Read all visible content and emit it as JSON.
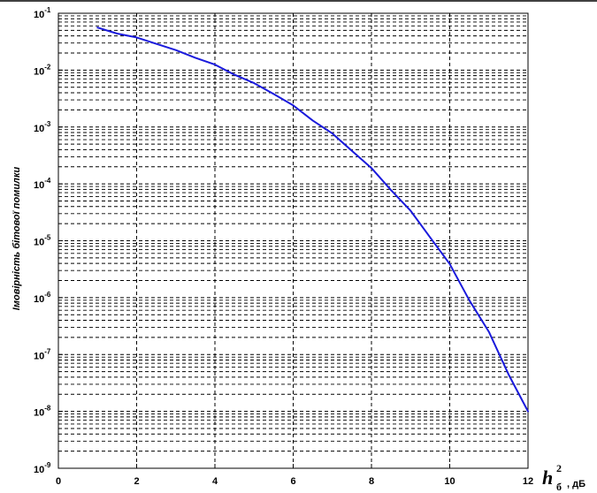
{
  "chart_data": {
    "type": "line",
    "title": "",
    "ylabel": "Імовірність бітової помилки",
    "xlabel": {
      "base": "h",
      "subscript": "б",
      "superscript": "2",
      "unit": ", дБ"
    },
    "x_ticks": [
      "0",
      "2",
      "4",
      "6",
      "8",
      "10",
      "12"
    ],
    "y_ticks": [
      {
        "base": "10",
        "exp": "-9"
      },
      {
        "base": "10",
        "exp": "-8"
      },
      {
        "base": "10",
        "exp": "-7"
      },
      {
        "base": "10",
        "exp": "-6"
      },
      {
        "base": "10",
        "exp": "-5"
      },
      {
        "base": "10",
        "exp": "-4"
      },
      {
        "base": "10",
        "exp": "-3"
      },
      {
        "base": "10",
        "exp": "-2"
      },
      {
        "base": "10",
        "exp": "-1"
      }
    ],
    "xlim": [
      0,
      12
    ],
    "ylim": [
      1e-09,
      0.1
    ],
    "yscale": "log",
    "grid": true,
    "series": [
      {
        "color": "#1a1adc",
        "x": [
          1,
          1.5,
          2,
          2.5,
          3,
          3.5,
          4,
          4.5,
          5,
          5.5,
          6,
          6.5,
          7,
          7.5,
          8,
          8.5,
          9,
          9.5,
          10,
          10.5,
          11,
          11.5,
          12
        ],
        "y": [
          0.056,
          0.044,
          0.0375,
          0.029,
          0.0225,
          0.0165,
          0.0125,
          0.0083,
          0.0059,
          0.0038,
          0.0024,
          0.0013,
          0.00077,
          0.00038,
          0.00019,
          7.76e-05,
          3.36e-05,
          1.14e-05,
          3.9e-06,
          9e-07,
          2.5e-07,
          4.5e-08,
          1e-08
        ]
      }
    ]
  }
}
